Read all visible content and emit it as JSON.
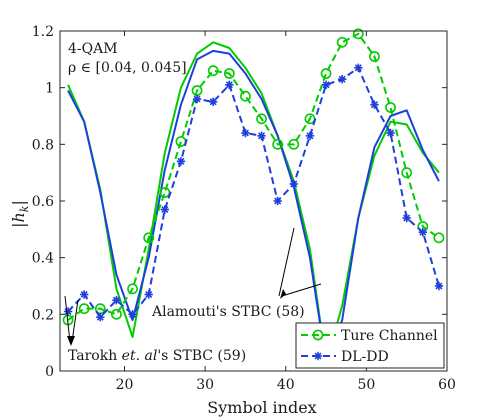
{
  "chart_data": {
    "type": "line",
    "xlabel": "Symbol index",
    "ylabel": "|h_k|",
    "xlim": [
      12,
      60
    ],
    "ylim": [
      0,
      1.2
    ],
    "xticks": [
      20,
      30,
      40,
      50,
      60
    ],
    "yticks": [
      0,
      0.2,
      0.4,
      0.6,
      0.8,
      1.0,
      1.2
    ],
    "ytick_labels": [
      "0",
      "0.2",
      "0.4",
      "0.6",
      "0.8",
      "1",
      "1.2"
    ],
    "grid": false,
    "legend_position": "bottom-right",
    "annotations": {
      "modulation": "4-QAM",
      "rho": "ρ ∈ [0.04, 0.045]",
      "alamouti": "Alamouti's STBC (58)",
      "tarokh_pre": "Tarokh ",
      "tarokh_italic": "et. al",
      "tarokh_post": "'s STBC (59)"
    },
    "series": [
      {
        "name": "Ture Channel",
        "group": "alamouti",
        "color": "#00cc00",
        "dash": "solid",
        "marker": "none",
        "x": [
          13,
          15,
          17,
          19,
          21,
          23,
          25,
          27,
          29,
          31,
          33,
          35,
          37,
          39,
          41,
          43,
          45,
          47,
          49,
          51,
          53,
          55,
          57,
          59
        ],
        "y": [
          1.01,
          0.88,
          0.64,
          0.29,
          0.12,
          0.43,
          0.77,
          1.0,
          1.12,
          1.16,
          1.14,
          1.07,
          0.98,
          0.83,
          0.67,
          0.43,
          0.03,
          0.23,
          0.54,
          0.76,
          0.88,
          0.87,
          0.77,
          0.7
        ]
      },
      {
        "name": "DL-DD",
        "group": "alamouti",
        "color": "#1f3fdd",
        "dash": "solid",
        "marker": "none",
        "x": [
          13,
          15,
          17,
          19,
          21,
          23,
          25,
          27,
          29,
          31,
          33,
          35,
          37,
          39,
          41,
          43,
          45,
          47,
          49,
          51,
          53,
          55,
          57,
          59
        ],
        "y": [
          0.99,
          0.88,
          0.63,
          0.34,
          0.18,
          0.4,
          0.71,
          0.94,
          1.1,
          1.13,
          1.12,
          1.05,
          0.96,
          0.83,
          0.65,
          0.4,
          0.03,
          0.18,
          0.54,
          0.79,
          0.9,
          0.92,
          0.78,
          0.67
        ]
      },
      {
        "name": "Ture Channel",
        "group": "tarokh",
        "color": "#00cc00",
        "dash": "dashed",
        "marker": "circle",
        "x": [
          13,
          15,
          17,
          19,
          21,
          23,
          25,
          27,
          29,
          31,
          33,
          35,
          37,
          39,
          41,
          43,
          45,
          47,
          49,
          51,
          53,
          55,
          57,
          59
        ],
        "y": [
          0.18,
          0.22,
          0.22,
          0.2,
          0.29,
          0.47,
          0.63,
          0.81,
          0.99,
          1.06,
          1.05,
          0.97,
          0.89,
          0.8,
          0.8,
          0.89,
          1.05,
          1.16,
          1.19,
          1.11,
          0.93,
          0.7,
          0.51,
          0.47
        ]
      },
      {
        "name": "DL-DD",
        "group": "tarokh",
        "color": "#1f3fdd",
        "dash": "dashed",
        "marker": "asterisk",
        "x": [
          13,
          15,
          17,
          19,
          21,
          23,
          25,
          27,
          29,
          31,
          33,
          35,
          37,
          39,
          41,
          43,
          45,
          47,
          49,
          51,
          53,
          55,
          57,
          59
        ],
        "y": [
          0.21,
          0.27,
          0.19,
          0.25,
          0.2,
          0.27,
          0.57,
          0.74,
          0.96,
          0.95,
          1.01,
          0.84,
          0.83,
          0.6,
          0.66,
          0.83,
          1.01,
          1.03,
          1.07,
          0.94,
          0.84,
          0.54,
          0.49,
          0.3
        ]
      }
    ],
    "legend_entries": [
      {
        "label": "Ture Channel",
        "color": "#00cc00",
        "marker": "circle"
      },
      {
        "label": "DL-DD",
        "color": "#1f3fdd",
        "marker": "asterisk"
      }
    ]
  }
}
